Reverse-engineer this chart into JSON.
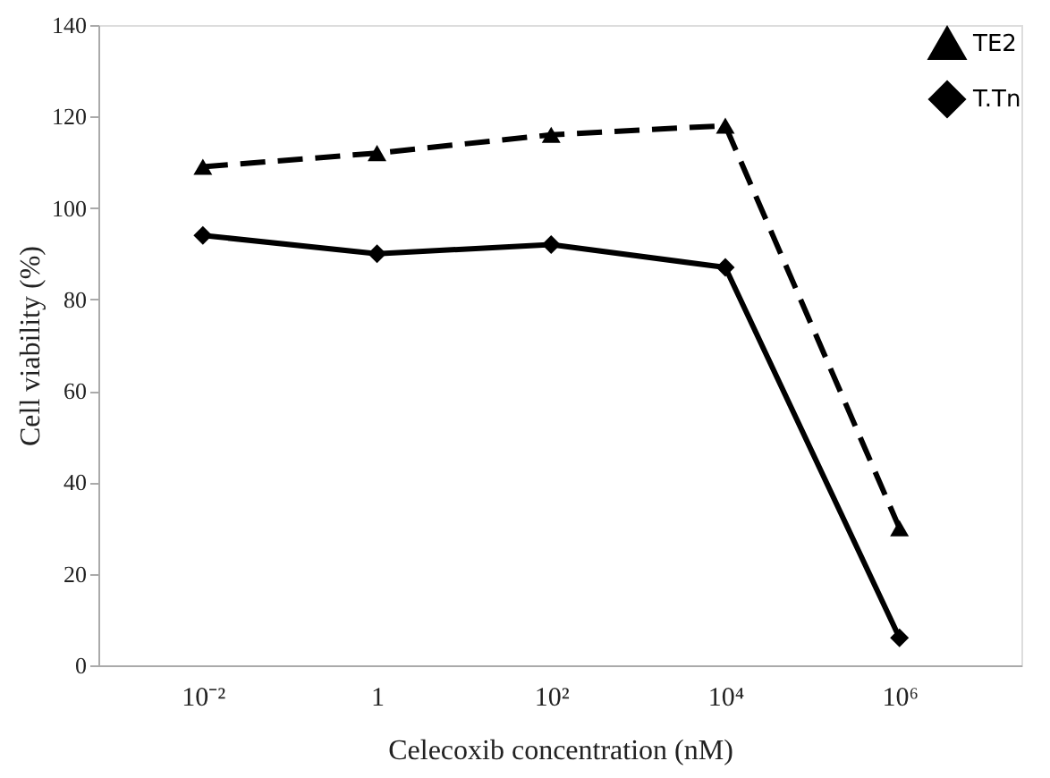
{
  "chart_data": {
    "type": "line",
    "xlabel": "Celecoxib concentration (nM)",
    "ylabel": "Cell viability (%)",
    "categories": [
      "10⁻²",
      "1",
      "10²",
      "10⁴",
      "10⁶"
    ],
    "series": [
      {
        "name": "TE2",
        "color": "#000000",
        "values": [
          109,
          112,
          116,
          118,
          30
        ],
        "marker": "triangle",
        "line_style": "dashed"
      },
      {
        "name": "T.Tn",
        "color": "#000000",
        "values": [
          94,
          90,
          92,
          87,
          6
        ],
        "marker": "diamond",
        "line_style": "solid"
      }
    ],
    "ylim": [
      0,
      140
    ],
    "yticks": [
      0,
      20,
      40,
      60,
      80,
      100,
      120,
      140
    ],
    "grid": false,
    "legend": "top right"
  }
}
